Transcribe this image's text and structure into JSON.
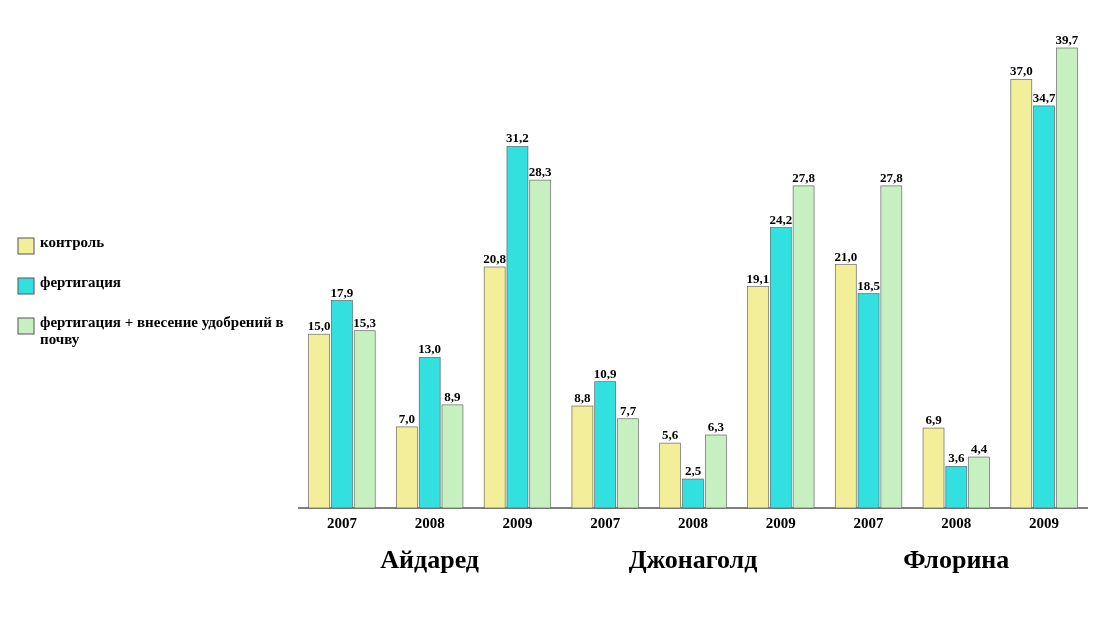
{
  "chart_data": {
    "type": "bar",
    "categories": [
      "2007",
      "2008",
      "2009",
      "2007",
      "2008",
      "2009",
      "2007",
      "2008",
      "2009"
    ],
    "series": [
      {
        "name": "контроль",
        "color": "#f2ee9a",
        "values": [
          15.0,
          7.0,
          20.8,
          8.8,
          5.6,
          19.1,
          21.0,
          6.9,
          37.0
        ],
        "value_labels": [
          "15,0",
          "7,0",
          "20,8",
          "8,8",
          "5,6",
          "19,1",
          "21,0",
          "6,9",
          "37,0"
        ]
      },
      {
        "name": "фертигация",
        "color": "#33e0e0",
        "values": [
          17.9,
          13.0,
          31.2,
          10.9,
          2.5,
          24.2,
          18.5,
          3.6,
          34.7
        ],
        "value_labels": [
          "17,9",
          "13,0",
          "31,2",
          "10,9",
          "2,5",
          "24,2",
          "18,5",
          "3,6",
          "34,7"
        ]
      },
      {
        "name": "фертигация + внесение удобрений в почву",
        "color": "#c6f0c0",
        "values": [
          15.3,
          8.9,
          28.3,
          7.7,
          6.3,
          27.8,
          27.8,
          4.4,
          39.7
        ],
        "value_labels": [
          "15,3",
          "8,9",
          "28,3",
          "7,7",
          "6,3",
          "27,8",
          "27,8",
          "4,4",
          "39,7"
        ]
      }
    ],
    "annotations": [
      "Айдаред",
      "Джонаголд",
      "Флорина"
    ],
    "legend": "left"
  }
}
